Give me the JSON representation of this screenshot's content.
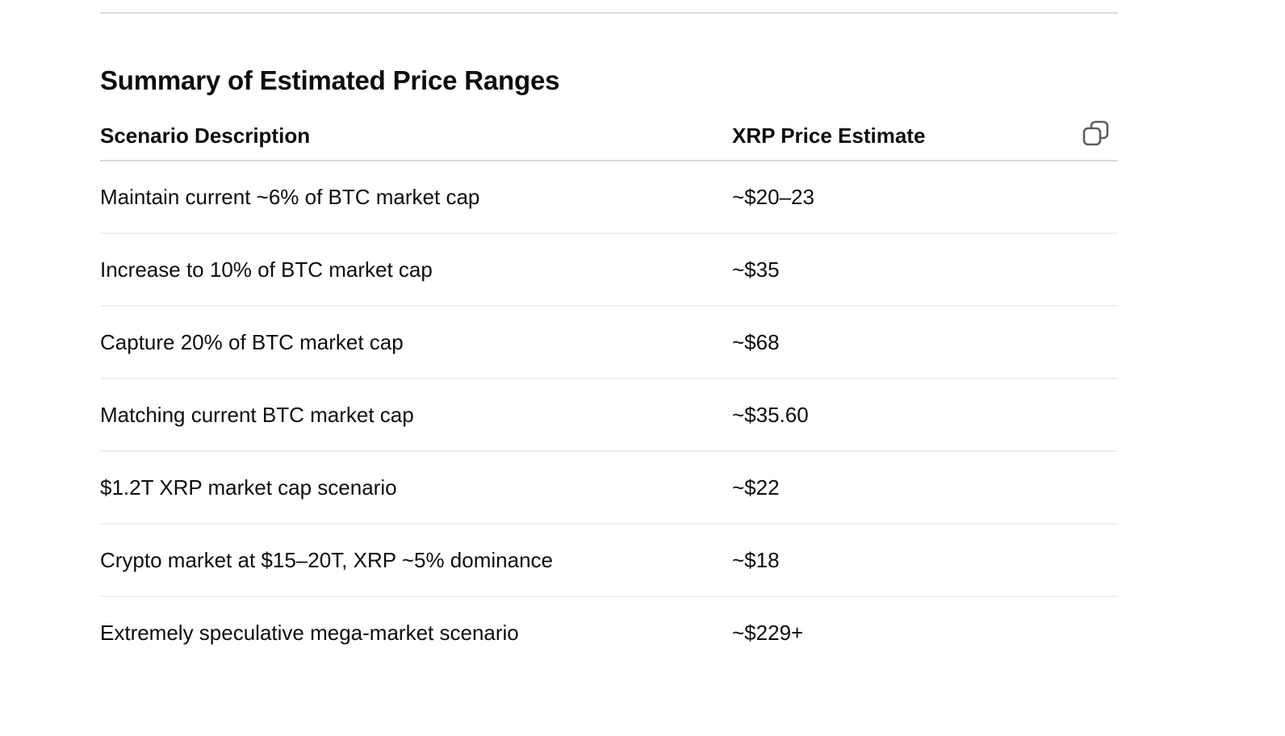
{
  "section": {
    "title": "Summary of Estimated Price Ranges"
  },
  "table": {
    "headers": [
      "Scenario Description",
      "XRP Price Estimate"
    ],
    "copy_icon": "copy-icon",
    "rows": [
      {
        "scenario": "Maintain current ~6% of BTC market cap",
        "estimate": "~$20–23"
      },
      {
        "scenario": "Increase to 10% of BTC market cap",
        "estimate": "~$35"
      },
      {
        "scenario": "Capture 20% of BTC market cap",
        "estimate": "~$68"
      },
      {
        "scenario": "Matching current BTC market cap",
        "estimate": "~$35.60"
      },
      {
        "scenario": "$1.2T XRP market cap scenario",
        "estimate": "~$22"
      },
      {
        "scenario": "Crypto market at $15–20T, XRP ~5% dominance",
        "estimate": "~$18"
      },
      {
        "scenario": "Extremely speculative mega-market scenario",
        "estimate": "~$229+"
      }
    ]
  }
}
